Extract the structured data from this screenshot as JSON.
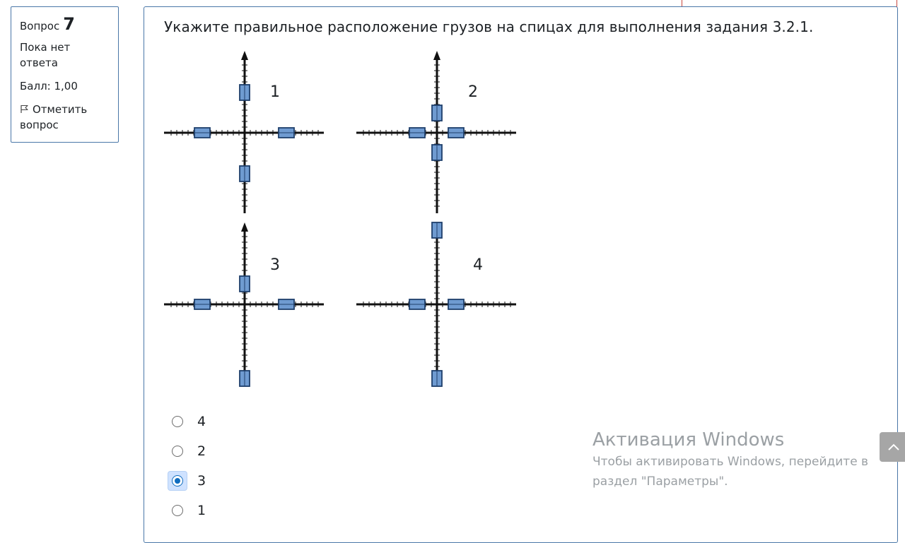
{
  "question_info": {
    "label": "Вопрос",
    "number": "7",
    "state": "Пока нет ответа",
    "grade": "Балл: 1,00",
    "flag_label": "Отметить вопрос"
  },
  "question_text": "Укажите правильное расположение грузов на спицах для выполнения задания 3.2.1.",
  "figure": {
    "diagram_labels": [
      "1",
      "2",
      "3",
      "4"
    ]
  },
  "answers": [
    {
      "label": "4",
      "checked": false
    },
    {
      "label": "2",
      "checked": false
    },
    {
      "label": "3",
      "checked": true
    },
    {
      "label": "1",
      "checked": false
    }
  ],
  "watermark": {
    "title": "Активация Windows",
    "text": "Чтобы активировать Windows, перейдите в раздел \"Параметры\"."
  },
  "icons": {
    "flag": "flag-icon",
    "scroll_top": "chevron-up-icon"
  },
  "colors": {
    "accent": "#0f6cbf",
    "box_border": "#4a77a8",
    "weight_fill": "#6f9bd1",
    "weight_border": "#1f3f6b"
  }
}
